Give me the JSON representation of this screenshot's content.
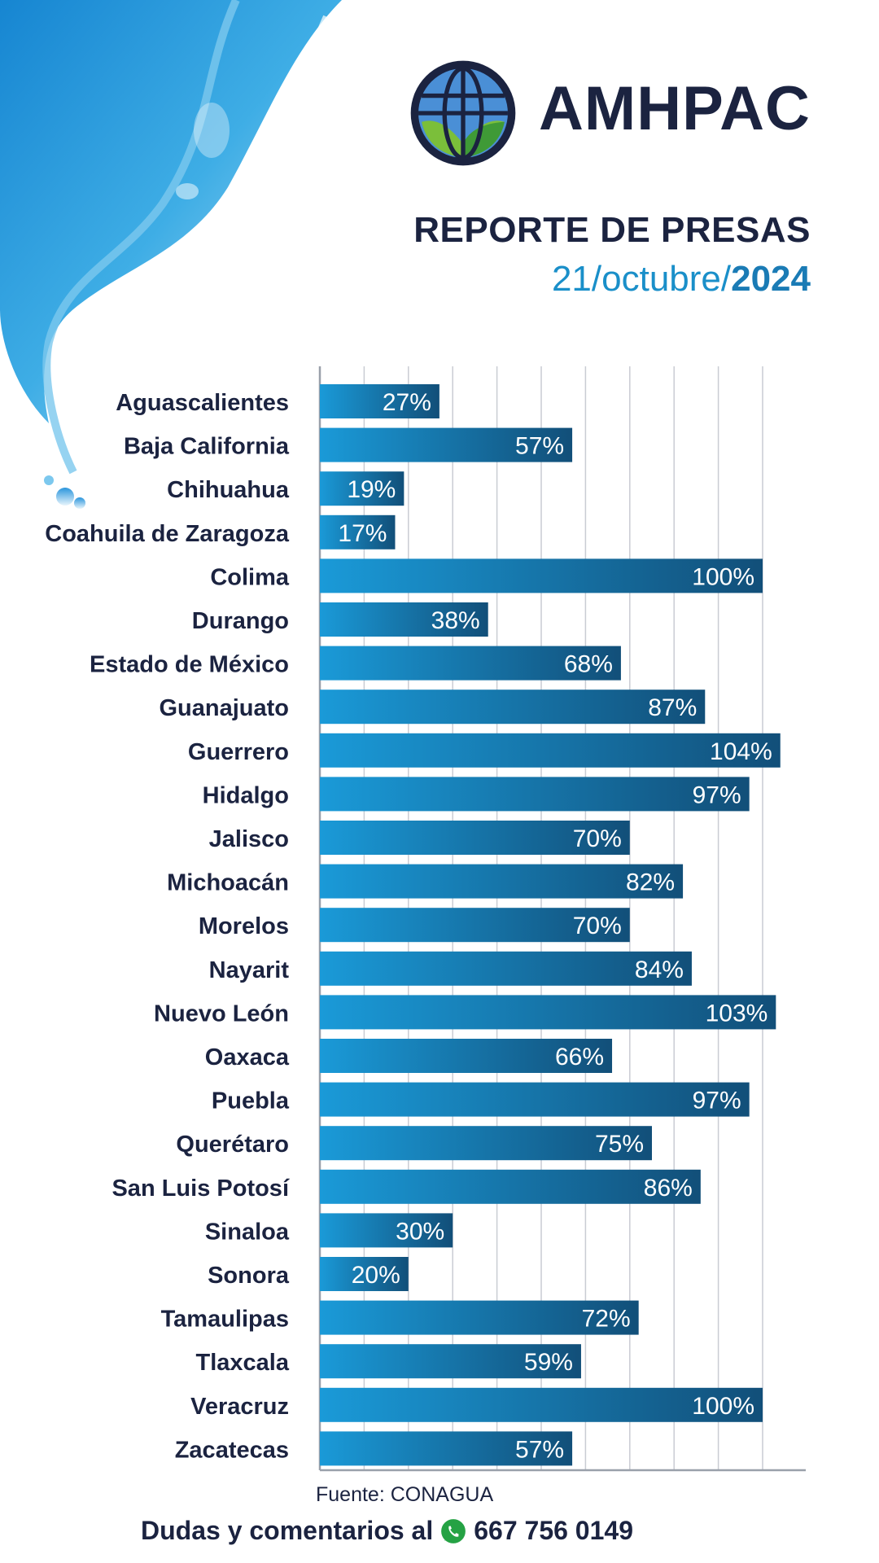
{
  "brand": {
    "name": "AMHPAC"
  },
  "header": {
    "title": "REPORTE DE PRESAS",
    "date_prefix": "21/octubre/",
    "date_year": "2024"
  },
  "source": "Fuente: CONAGUA",
  "footer": {
    "text": "Dudas y comentarios al",
    "phone": "667 756 0149",
    "icon": "whatsapp-icon"
  },
  "colors": {
    "bar_light": "#1a9ad8",
    "bar_dark": "#124f79",
    "text_dark": "#1b2340",
    "accent": "#1a8fc9"
  },
  "chart_data": {
    "type": "bar",
    "orientation": "horizontal",
    "title": "REPORTE DE PRESAS",
    "categories": [
      "Aguascalientes",
      "Baja California",
      "Chihuahua",
      "Coahuila de Zaragoza",
      "Colima",
      "Durango",
      "Estado de México",
      "Guanajuato",
      "Guerrero",
      "Hidalgo",
      "Jalisco",
      "Michoacán",
      "Morelos",
      "Nayarit",
      "Nuevo León",
      "Oaxaca",
      "Puebla",
      "Querétaro",
      "San Luis Potosí",
      "Sinaloa",
      "Sonora",
      "Tamaulipas",
      "Tlaxcala",
      "Veracruz",
      "Zacatecas"
    ],
    "values": [
      27,
      57,
      19,
      17,
      100,
      38,
      68,
      87,
      104,
      97,
      70,
      82,
      70,
      84,
      103,
      66,
      97,
      75,
      86,
      30,
      20,
      72,
      59,
      100,
      57
    ],
    "labels": [
      "27%",
      "57%",
      "19%",
      "17%",
      "100%",
      "38%",
      "68%",
      "87%",
      "104%",
      "97%",
      "70%",
      "82%",
      "70%",
      "84%",
      "103%",
      "66%",
      "97%",
      "75%",
      "86%",
      "30%",
      "20%",
      "72%",
      "59%",
      "100%",
      "57%"
    ],
    "xlim": [
      0,
      110
    ],
    "grid": true,
    "xlabel": "",
    "ylabel": ""
  }
}
